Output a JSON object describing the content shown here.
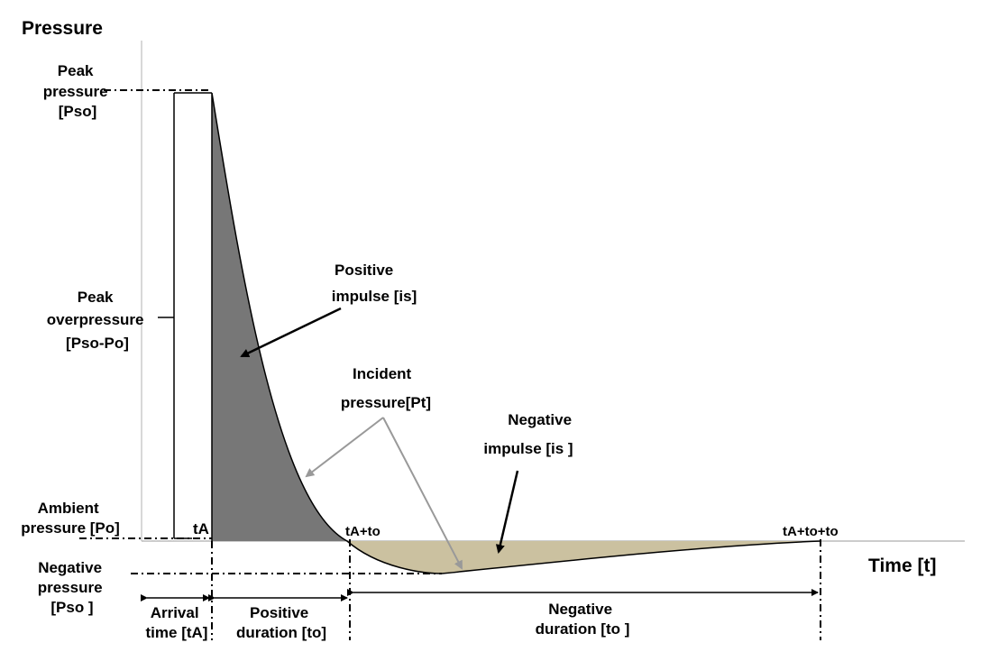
{
  "axes": {
    "y_label": "Pressure",
    "x_label": "Time [t]"
  },
  "left_labels": {
    "peak_pressure": [
      "Peak",
      "pressure",
      "[Pso]"
    ],
    "peak_overpressure": [
      "Peak",
      "overpressure",
      "[Pso-Po]"
    ],
    "ambient_pressure": [
      "Ambient",
      "pressure [Po]"
    ],
    "negative_pressure": [
      "Negative",
      "pressure",
      "[Pso ]"
    ]
  },
  "time_marks": {
    "ta": "tA",
    "ta_to": "tA+to",
    "ta_to_to": "tA+to+to"
  },
  "annotations": {
    "positive_impulse": [
      "Positive",
      "impulse [is]"
    ],
    "incident_pressure": [
      "Incident",
      "pressure[Pt]"
    ],
    "negative_impulse": [
      "Negative",
      "impulse [is ]"
    ]
  },
  "durations": {
    "arrival": [
      "Arrival",
      "time [tA]"
    ],
    "positive": [
      "Positive",
      "duration [to]"
    ],
    "negative": [
      "Negative",
      "duration [to ]"
    ]
  },
  "colors": {
    "positive_fill": "#777777",
    "negative_fill": "#cbc1a0",
    "pointer_gray": "#999999",
    "axis": "#cccccc"
  }
}
